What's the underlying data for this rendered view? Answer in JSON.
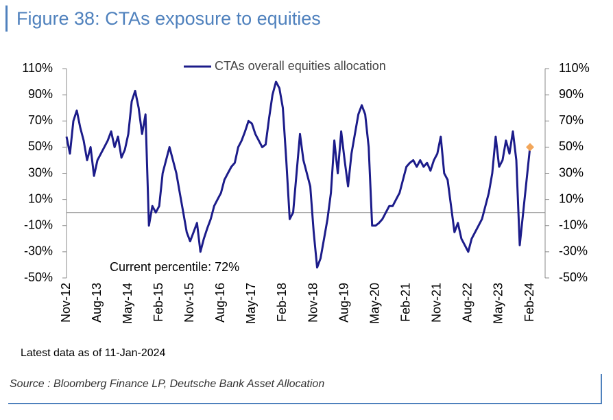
{
  "chart_data": {
    "type": "line",
    "title": "Figure 38: CTAs exposure to equities",
    "annotations": [
      "Current percentile: 72%",
      "Latest data as of 11-Jan-2024"
    ],
    "source": "Source : Bloomberg Finance LP, Deutsche Bank Asset Allocation",
    "categories": [
      "Nov-12",
      null,
      null,
      null,
      null,
      null,
      null,
      null,
      null,
      "Aug-13",
      null,
      null,
      null,
      null,
      null,
      null,
      null,
      null,
      "May-14",
      null,
      null,
      null,
      null,
      null,
      null,
      null,
      null,
      "Feb-15",
      null,
      null,
      null,
      null,
      null,
      null,
      null,
      null,
      "Nov-15",
      null,
      null,
      null,
      null,
      null,
      null,
      null,
      null,
      "Aug-16",
      null,
      null,
      null,
      null,
      null,
      null,
      null,
      null,
      "May-17",
      null,
      null,
      null,
      null,
      null,
      null,
      null,
      null,
      "Feb-18",
      null,
      null,
      null,
      null,
      null,
      null,
      null,
      null,
      "Nov-18",
      null,
      null,
      null,
      null,
      null,
      null,
      null,
      null,
      "Aug-19",
      null,
      null,
      null,
      null,
      null,
      null,
      null,
      null,
      "May-20",
      null,
      null,
      null,
      null,
      null,
      null,
      null,
      null,
      "Feb-21",
      null,
      null,
      null,
      null,
      null,
      null,
      null,
      null,
      "Nov-21",
      null,
      null,
      null,
      null,
      null,
      null,
      null,
      null,
      "Aug-22",
      null,
      null,
      null,
      null,
      null,
      null,
      null,
      null,
      "May-23",
      null,
      null,
      null,
      null,
      null,
      null,
      null,
      null,
      "Feb-24"
    ],
    "series": [
      {
        "name": "CTAs overall equities allocation",
        "color": "#1c1c8a",
        "last_marker_color": "#f2a65a",
        "values": [
          58,
          45,
          70,
          78,
          65,
          55,
          40,
          50,
          28,
          40,
          45,
          50,
          55,
          62,
          50,
          58,
          42,
          48,
          60,
          85,
          93,
          80,
          60,
          75,
          -10,
          5,
          0,
          5,
          30,
          40,
          50,
          40,
          30,
          15,
          0,
          -15,
          -22,
          -15,
          -8,
          -30,
          -20,
          -12,
          -5,
          5,
          10,
          15,
          25,
          30,
          35,
          38,
          50,
          55,
          62,
          70,
          68,
          60,
          55,
          50,
          52,
          72,
          90,
          100,
          95,
          80,
          40,
          -5,
          0,
          30,
          60,
          40,
          30,
          20,
          -15,
          -42,
          -35,
          -20,
          -5,
          15,
          55,
          30,
          62,
          40,
          20,
          45,
          60,
          75,
          82,
          75,
          50,
          -10,
          -10,
          -8,
          -5,
          0,
          5,
          5,
          10,
          15,
          25,
          35,
          38,
          40,
          35,
          40,
          35,
          38,
          32,
          40,
          45,
          58,
          30,
          25,
          5,
          -15,
          -8,
          -20,
          -25,
          -30,
          -20,
          -15,
          -10,
          -5,
          5,
          15,
          30,
          58,
          35,
          40,
          55,
          45,
          62,
          40,
          -25,
          0,
          25,
          50
        ]
      }
    ],
    "ylim": [
      -50,
      110
    ],
    "yticks": [
      {
        "value": 110,
        "label": "110%"
      },
      {
        "value": 90,
        "label": "90%"
      },
      {
        "value": 70,
        "label": "70%"
      },
      {
        "value": 50,
        "label": "50%"
      },
      {
        "value": 30,
        "label": "30%"
      },
      {
        "value": 10,
        "label": "10%"
      },
      {
        "value": -10,
        "label": "-10%"
      },
      {
        "value": -30,
        "label": "-30%"
      },
      {
        "value": -50,
        "label": "-50%"
      }
    ],
    "zero_line": true
  }
}
